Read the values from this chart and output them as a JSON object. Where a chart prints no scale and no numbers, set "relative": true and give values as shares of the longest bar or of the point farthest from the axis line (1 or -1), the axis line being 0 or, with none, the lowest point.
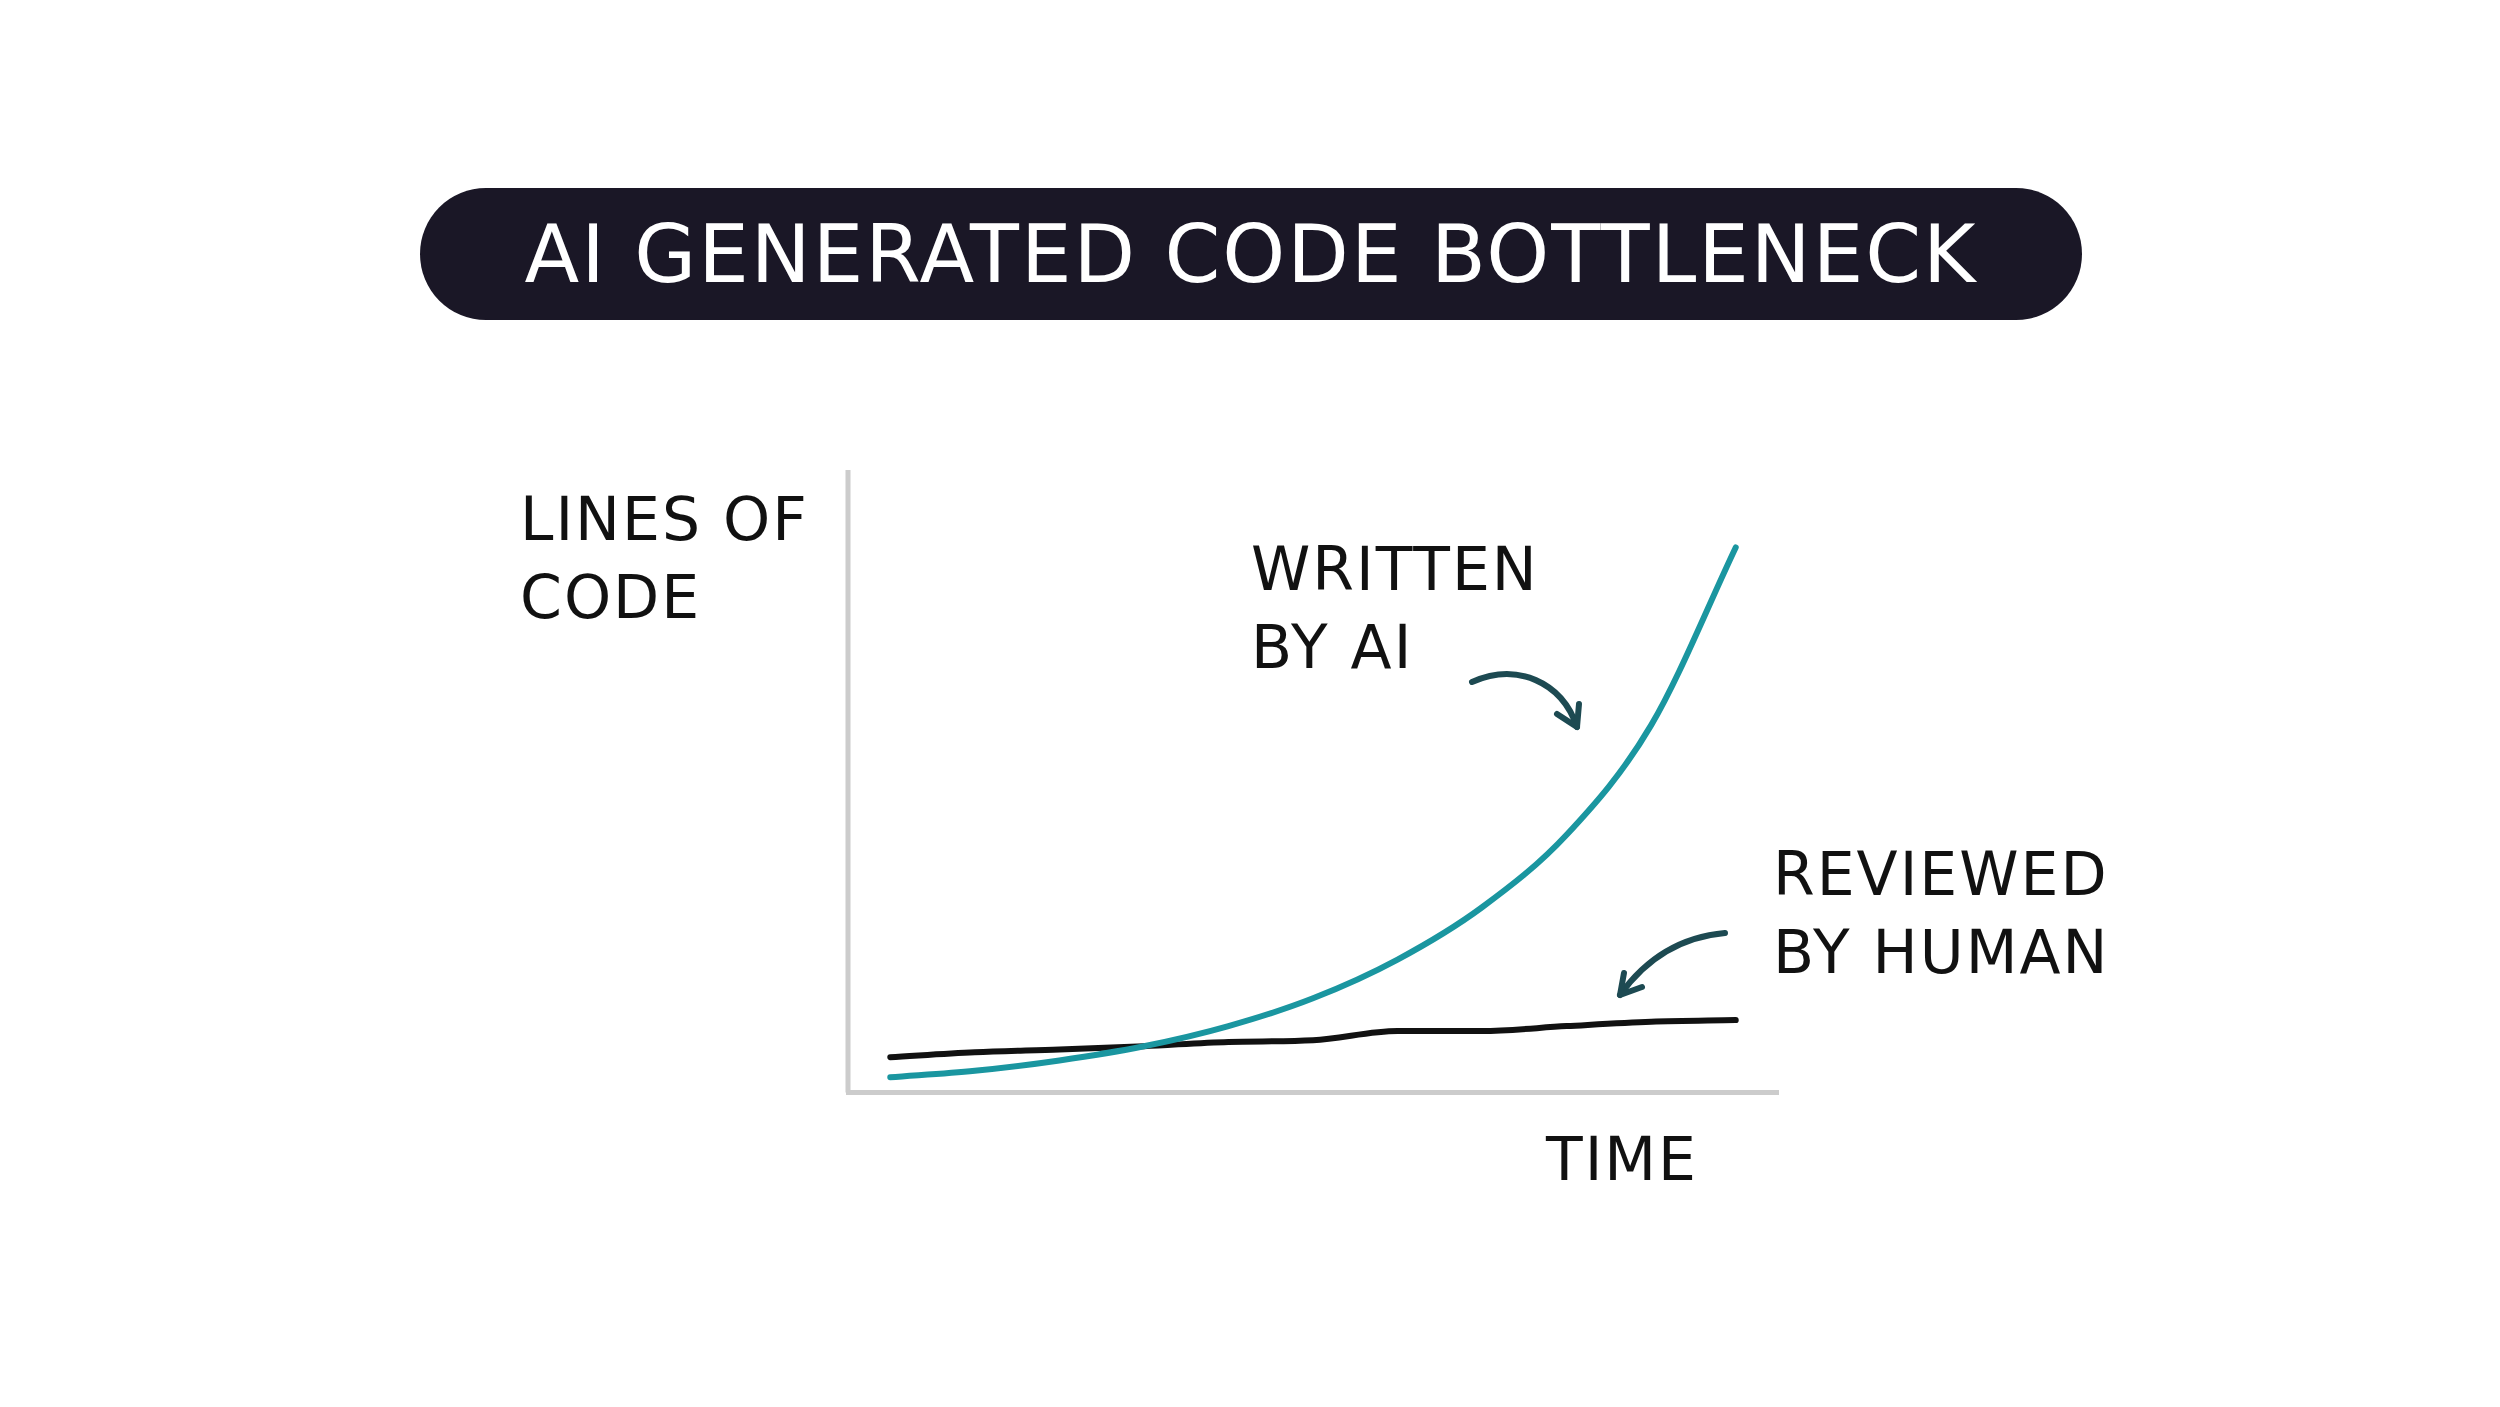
{
  "chart_data": {
    "type": "line",
    "title": "AI GENERATED CODE BOTTLENECK",
    "xlabel": "TIME",
    "ylabel": "LINES OF CODE",
    "relative": true,
    "legend": false,
    "grid": false,
    "categories": [
      null,
      null,
      null,
      null,
      null,
      null,
      null,
      null,
      null,
      null,
      null
    ],
    "series": [
      {
        "name": "WRITTEN BY AI",
        "color": "#1a96a0",
        "values": [
          0.028,
          0.04,
          0.059,
          0.085,
          0.122,
          0.173,
          0.244,
          0.34,
          0.473,
          0.674,
          1
        ]
      },
      {
        "name": "REVIEWED BY HUMAN",
        "color": "#111111",
        "values": [
          0.065,
          0.074,
          0.079,
          0.085,
          0.093,
          0.096,
          0.113,
          0.113,
          0.122,
          0.13,
          0.133
        ]
      }
    ]
  }
}
